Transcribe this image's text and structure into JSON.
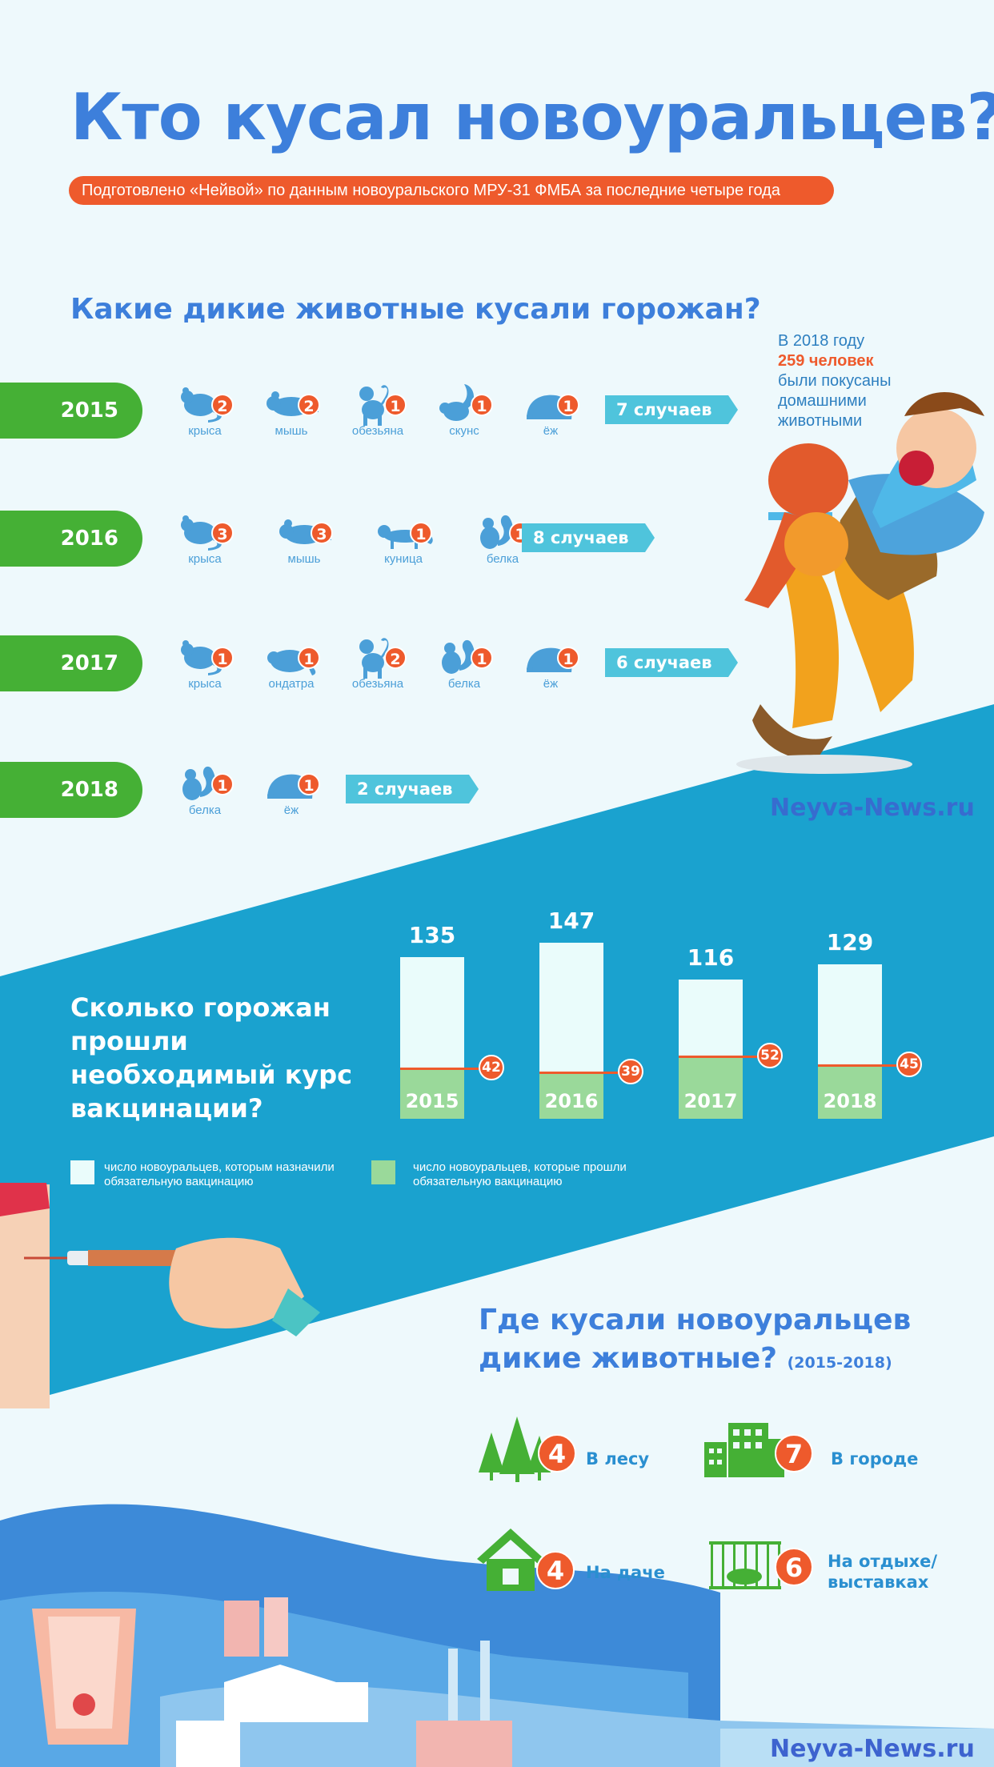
{
  "header": {
    "title": "Кто кусал новоуральцев?",
    "subtitle": "Подготовлено «Нейвой» по данным новоуральского МРУ-31 ФМБА за последние четыре года"
  },
  "wild": {
    "title": "Какие дикие животные кусали горожан?",
    "rows": [
      {
        "year": "2015",
        "cases": "7 случаев",
        "animals": [
          {
            "name": "крыса",
            "count": "2",
            "icon": "rat-icon"
          },
          {
            "name": "мышь",
            "count": "2",
            "icon": "mouse-icon"
          },
          {
            "name": "обезьяна",
            "count": "1",
            "icon": "monkey-icon"
          },
          {
            "name": "скунс",
            "count": "1",
            "icon": "skunk-icon"
          },
          {
            "name": "ёж",
            "count": "1",
            "icon": "hedgehog-icon"
          }
        ]
      },
      {
        "year": "2016",
        "cases": "8 случаев",
        "animals": [
          {
            "name": "крыса",
            "count": "3",
            "icon": "rat-icon"
          },
          {
            "name": "мышь",
            "count": "3",
            "icon": "mouse-icon"
          },
          {
            "name": "куница",
            "count": "1",
            "icon": "marten-icon"
          },
          {
            "name": "белка",
            "count": "1",
            "icon": "squirrel-icon"
          }
        ]
      },
      {
        "year": "2017",
        "cases": "6 случаев",
        "animals": [
          {
            "name": "крыса",
            "count": "1",
            "icon": "rat-icon"
          },
          {
            "name": "ондатра",
            "count": "1",
            "icon": "muskrat-icon"
          },
          {
            "name": "обезьяна",
            "count": "2",
            "icon": "monkey-icon"
          },
          {
            "name": "белка",
            "count": "1",
            "icon": "squirrel-icon"
          },
          {
            "name": "ёж",
            "count": "1",
            "icon": "hedgehog-icon"
          }
        ]
      },
      {
        "year": "2018",
        "cases": "2 случаев",
        "animals": [
          {
            "name": "белка",
            "count": "1",
            "icon": "squirrel-icon"
          },
          {
            "name": "ёж",
            "count": "1",
            "icon": "hedgehog-icon"
          }
        ]
      }
    ]
  },
  "note": {
    "line1": "В 2018 году",
    "line2": "259 человек",
    "line3": "были покусаны",
    "line4": "домашними",
    "line5": "животными"
  },
  "watermark": "Neyva-News.ru",
  "vaccination": {
    "title_lines": [
      "Сколько горожан",
      "прошли",
      "необходимый курс",
      "вакцинации?"
    ],
    "legend": {
      "assigned": "число новоуральцев, которым назначили обязательную вакцинацию",
      "completed": "число новоуральцев, которые прошли обязательную вакцинацию"
    }
  },
  "chart_data": {
    "type": "bar",
    "categories": [
      "2015",
      "2016",
      "2017",
      "2018"
    ],
    "series": [
      {
        "name": "число новоуральцев, которым назначили обязательную вакцинацию",
        "values": [
          135,
          147,
          116,
          129
        ]
      },
      {
        "name": "число новоуральцев, которые прошли обязательную вакцинацию",
        "values": [
          42,
          39,
          52,
          45
        ]
      }
    ],
    "title": "Сколько горожан прошли необходимый курс вакцинации?",
    "xlabel": "",
    "ylabel": "",
    "ylim": [
      0,
      150
    ],
    "legend": "bottom",
    "colors": {
      "assigned": "#eafcfb",
      "completed": "#9ad99a",
      "marker": "#ee5a2c"
    }
  },
  "places": {
    "title_line1": "Где кусали новоуральцев",
    "title_line2": "дикие животные?",
    "period": "(2015-2018)",
    "items": [
      {
        "label": "В лесу",
        "count": "4",
        "icon": "forest-icon"
      },
      {
        "label": "В городе",
        "count": "7",
        "icon": "city-icon"
      },
      {
        "label": "На даче",
        "count": "4",
        "icon": "house-icon"
      },
      {
        "label": "На отдыхе/ выставках",
        "count": "6",
        "icon": "cage-icon"
      }
    ]
  },
  "colors": {
    "accent": "#3d7fdb",
    "orange": "#ee5a2c",
    "green": "#45b035",
    "teal": "#1aa2cf"
  }
}
